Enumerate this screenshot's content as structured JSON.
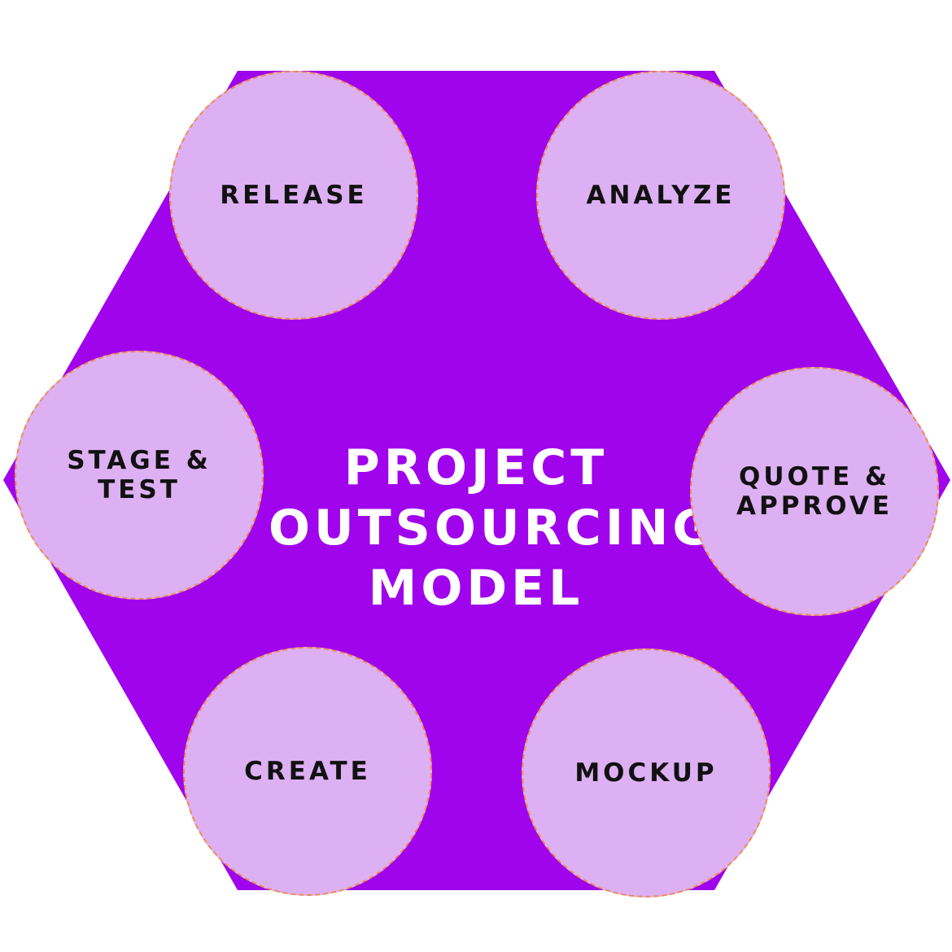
{
  "colors": {
    "hexagon": "#a004ec",
    "node_fill": "#ddb0f3",
    "node_border": "#f08a4b",
    "node_text": "#111111",
    "title_text": "#ffffff"
  },
  "title": {
    "line1": "PROJECT",
    "line2": "OUTSOURCING",
    "line3": "MODEL"
  },
  "nodes": [
    {
      "id": "release",
      "label": "RELEASE"
    },
    {
      "id": "analyze",
      "label": "ANALYZE"
    },
    {
      "id": "stage",
      "label": "STAGE &\nTEST"
    },
    {
      "id": "quote",
      "label": "QUOTE &\nAPPROVE"
    },
    {
      "id": "create",
      "label": "CREATE"
    },
    {
      "id": "mockup",
      "label": "MOCKUP"
    }
  ]
}
